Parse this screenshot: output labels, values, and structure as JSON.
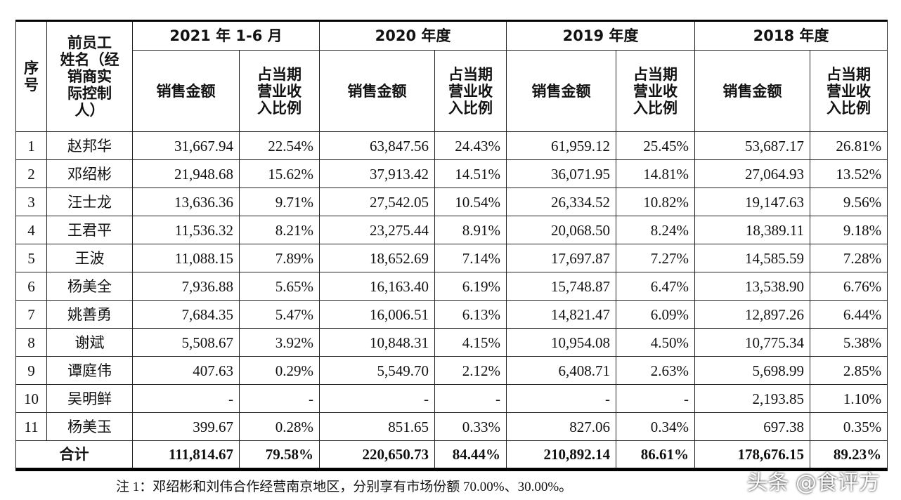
{
  "header": {
    "seq": [
      "序",
      "号"
    ],
    "name": [
      "前员工",
      "姓名（经",
      "销商实",
      "际控制",
      "人）"
    ],
    "periods": [
      "2021 年 1-6 月",
      "2020 年度",
      "2019 年度",
      "2018 年度"
    ],
    "amount": "销售金额",
    "ratio": [
      "占当期",
      "营业收",
      "入比例"
    ]
  },
  "table": {
    "rows": [
      [
        "1",
        "赵邦华",
        "31,667.94",
        "22.54%",
        "63,847.56",
        "24.43%",
        "61,959.12",
        "25.45%",
        "53,687.17",
        "26.81%"
      ],
      [
        "2",
        "邓绍彬",
        "21,948.68",
        "15.62%",
        "37,913.42",
        "14.51%",
        "36,071.95",
        "14.81%",
        "27,064.93",
        "13.52%"
      ],
      [
        "3",
        "汪士龙",
        "13,636.36",
        "9.71%",
        "27,542.05",
        "10.54%",
        "26,334.52",
        "10.82%",
        "19,147.63",
        "9.56%"
      ],
      [
        "4",
        "王君平",
        "11,536.32",
        "8.21%",
        "23,275.44",
        "8.91%",
        "20,068.50",
        "8.24%",
        "18,389.11",
        "9.18%"
      ],
      [
        "5",
        "王波",
        "11,088.15",
        "7.89%",
        "18,652.69",
        "7.14%",
        "17,697.87",
        "7.27%",
        "14,585.59",
        "7.28%"
      ],
      [
        "6",
        "杨美全",
        "7,936.88",
        "5.65%",
        "16,163.40",
        "6.19%",
        "15,748.87",
        "6.47%",
        "13,538.90",
        "6.76%"
      ],
      [
        "7",
        "姚善勇",
        "7,684.35",
        "5.47%",
        "16,006.51",
        "6.13%",
        "14,821.47",
        "6.09%",
        "12,897.26",
        "6.44%"
      ],
      [
        "8",
        "谢斌",
        "5,508.67",
        "3.92%",
        "10,848.31",
        "4.15%",
        "10,954.08",
        "4.50%",
        "10,775.34",
        "5.38%"
      ],
      [
        "9",
        "谭庭伟",
        "407.63",
        "0.29%",
        "5,549.70",
        "2.12%",
        "6,408.71",
        "2.63%",
        "5,698.99",
        "2.85%"
      ],
      [
        "10",
        "吴明鲜",
        "-",
        "-",
        "-",
        "-",
        "-",
        "-",
        "2,193.85",
        "1.10%"
      ],
      [
        "11",
        "杨美玉",
        "399.67",
        "0.28%",
        "851.65",
        "0.33%",
        "827.06",
        "0.34%",
        "697.38",
        "0.35%"
      ]
    ],
    "total": {
      "label": "合计",
      "values": [
        "111,814.67",
        "79.58%",
        "220,650.73",
        "84.44%",
        "210,892.14",
        "86.61%",
        "178,676.15",
        "89.23%"
      ]
    }
  },
  "note": "注 1：邓绍彬和刘伟合作经营南京地区，分别享有市场份额 70.00%、30.00%。",
  "watermark": "头条 @食评方"
}
